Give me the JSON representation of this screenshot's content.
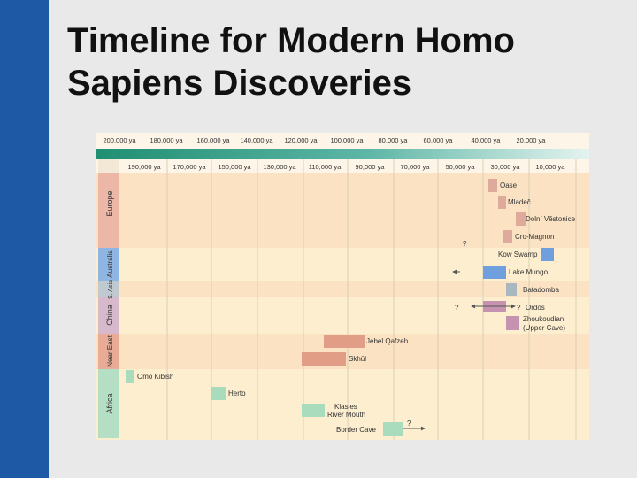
{
  "slide": {
    "title_line1": "Timeline for Modern Homo",
    "title_line2": "Sapiens Discoveries"
  },
  "figure": {
    "top_scale": [
      "200,000 ya",
      "180,000 ya",
      "160,000 ya",
      "140,000 ya",
      "120,000 ya",
      "100,000 ya",
      "80,000 ya",
      "60,000 ya",
      "40,000 ya",
      "20,000 ya"
    ],
    "sub_scale": [
      "190,000 ya",
      "170,000 ya",
      "150,000 ya",
      "130,000 ya",
      "110,000 ya",
      "90,000 ya",
      "70,000 ya",
      "50,000 ya",
      "30,000 ya",
      "10,000 ya"
    ],
    "regions": [
      {
        "label": "Europe",
        "color": "#ecb7a6"
      },
      {
        "label": "Australia",
        "color": "#8fb6e2"
      },
      {
        "label": "S. Asia",
        "color": "#bfcad0"
      },
      {
        "label": "China",
        "color": "#d7b9cc"
      },
      {
        "label": "Near East",
        "color": "#e7ab96"
      },
      {
        "label": "Africa",
        "color": "#b4dfc4"
      }
    ],
    "sites": [
      {
        "label": "Oase",
        "color": "#ddaa9c"
      },
      {
        "label": "Mladeč",
        "color": "#ddaa9c"
      },
      {
        "label": "Dolní Věstonice",
        "color": "#ddaa9c"
      },
      {
        "label": "Cro-Magnon",
        "color": "#ddaa9c"
      },
      {
        "label": "Kow Swamp",
        "color": "#6f9fdc"
      },
      {
        "label": "Lake Mungo",
        "color": "#6f9fdc"
      },
      {
        "label": "Batadomba",
        "color": "#a9b8bf"
      },
      {
        "label": "Ordos",
        "color": "#c593b0"
      },
      {
        "label": "Zhoukoudian",
        "sub": "(Upper Cave)",
        "color": "#c593b0"
      },
      {
        "label": "Jebel Qafzeh",
        "color": "#e29d86"
      },
      {
        "label": "Skhūl",
        "color": "#e29d86"
      },
      {
        "label": "Omo Kibish",
        "color": "#a9dcbc"
      },
      {
        "label": "Herto",
        "color": "#a9dcbc"
      },
      {
        "label": "Klasies",
        "sub": "River Mouth",
        "color": "#a9dcbc"
      },
      {
        "label": "Border Cave",
        "color": "#a9dcbc"
      }
    ],
    "question_mark": "?"
  }
}
